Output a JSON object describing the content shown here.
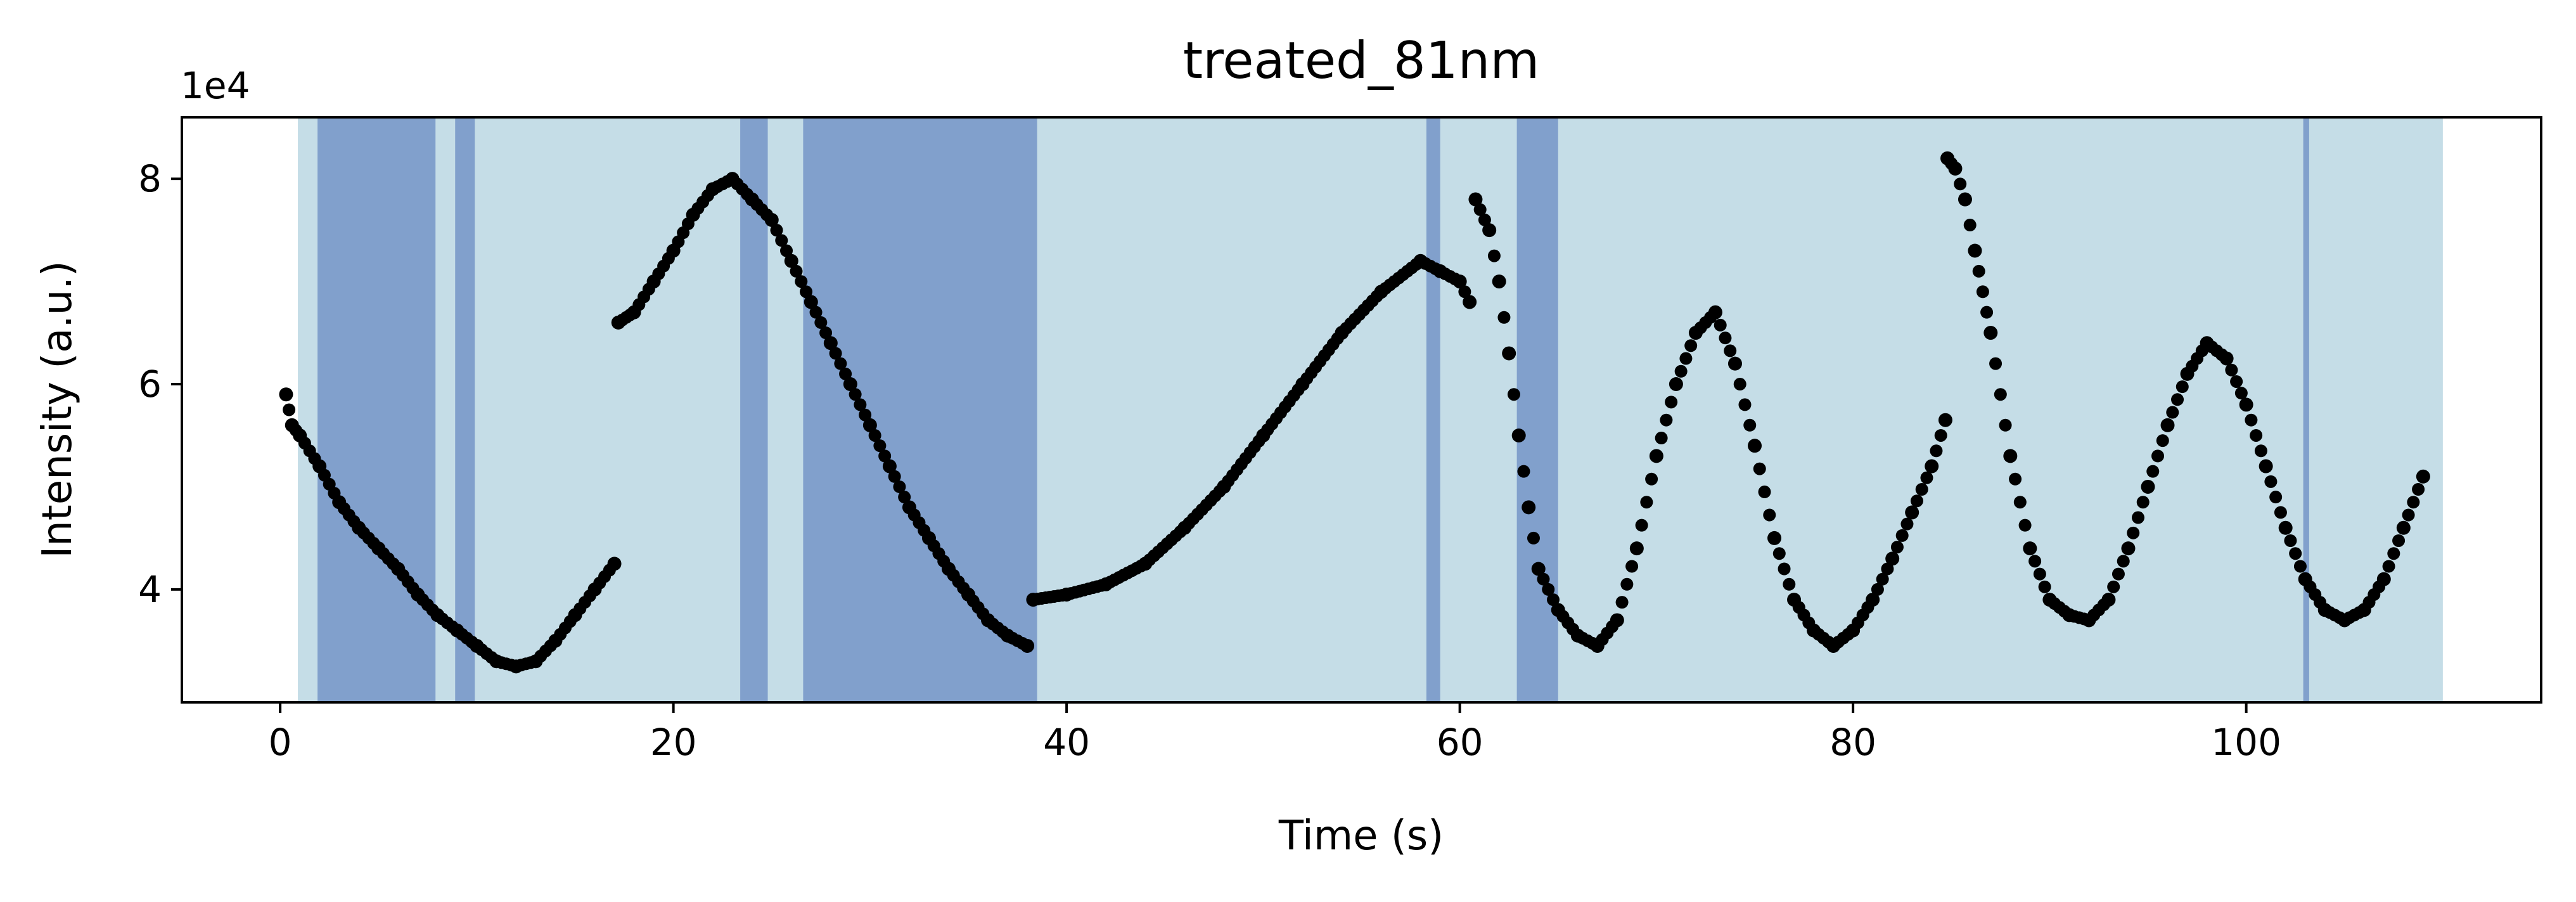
{
  "chart_data": {
    "type": "scatter",
    "title": "treated_81nm",
    "xlabel": "Time (s)",
    "ylabel": "Intensity (a.u.)",
    "y_offset_label": "1e4",
    "xlim": [
      -5,
      115
    ],
    "ylim": [
      2.9,
      8.6
    ],
    "xticks": [
      0,
      20,
      40,
      60,
      80,
      100
    ],
    "yticks": [
      4,
      6,
      8
    ],
    "grid": false,
    "marker_color": "#000000",
    "band_colors": {
      "light": "#c5dde7",
      "dark": "#81a0cc"
    },
    "light_bands": [
      [
        0.9,
        110.0
      ]
    ],
    "dark_bands": [
      [
        1.9,
        7.9
      ],
      [
        8.9,
        9.9
      ],
      [
        23.4,
        24.8
      ],
      [
        26.6,
        38.5
      ],
      [
        58.3,
        59.0
      ],
      [
        62.9,
        65.0
      ],
      [
        102.9,
        103.2
      ]
    ],
    "series": [
      {
        "x": [
          0.3,
          0.6,
          1.0,
          2.0,
          3.0,
          4.0,
          5.0,
          6.0,
          7.0,
          8.0,
          9.0,
          10.0,
          11.0,
          12.0,
          13.0,
          14.0,
          15.0,
          16.0,
          17.0
        ],
        "y": [
          5.9,
          5.6,
          5.5,
          5.2,
          4.85,
          4.6,
          4.4,
          4.2,
          3.95,
          3.75,
          3.6,
          3.45,
          3.3,
          3.25,
          3.3,
          3.5,
          3.75,
          4.0,
          4.25
        ]
      },
      {
        "x": [
          17.2,
          18.0,
          19.0,
          20.0,
          21.0,
          22.0,
          23.0,
          24.0,
          25.0,
          26.0,
          27.0,
          28.0,
          29.0,
          30.0,
          31.0,
          32.0,
          33.0,
          34.0,
          35.0,
          36.0,
          37.0,
          38.0
        ],
        "y": [
          6.6,
          6.7,
          7.0,
          7.3,
          7.65,
          7.9,
          8.0,
          7.8,
          7.6,
          7.2,
          6.8,
          6.4,
          6.0,
          5.6,
          5.2,
          4.8,
          4.5,
          4.2,
          3.95,
          3.7,
          3.55,
          3.45
        ]
      },
      {
        "x": [
          38.3,
          40.0,
          42.0,
          44.0,
          46.0,
          48.0,
          50.0,
          52.0,
          54.0,
          56.0,
          58.0,
          59.0,
          60.0,
          60.5
        ],
        "y": [
          3.9,
          3.95,
          4.05,
          4.25,
          4.6,
          5.0,
          5.5,
          6.0,
          6.5,
          6.9,
          7.2,
          7.1,
          7.0,
          6.8
        ]
      },
      {
        "x": [
          60.8,
          61.5,
          62.0,
          62.5,
          63.0,
          63.5,
          64.0,
          65.0,
          66.0,
          67.0,
          68.0,
          69.0,
          70.0,
          71.0,
          72.0,
          73.0,
          74.0,
          75.0,
          76.0,
          77.0,
          78.0,
          79.0,
          80.0,
          81.0,
          82.0,
          83.0,
          84.0,
          84.7
        ],
        "y": [
          7.8,
          7.5,
          7.0,
          6.3,
          5.5,
          4.8,
          4.2,
          3.8,
          3.55,
          3.45,
          3.7,
          4.4,
          5.3,
          6.0,
          6.5,
          6.7,
          6.2,
          5.4,
          4.5,
          3.9,
          3.6,
          3.45,
          3.6,
          3.9,
          4.3,
          4.75,
          5.2,
          5.65
        ]
      },
      {
        "x": [
          84.8,
          85.2,
          85.7,
          86.2,
          87.0,
          88.0,
          89.0,
          90.0,
          91.0,
          92.0,
          93.0,
          94.0,
          95.0,
          96.0,
          97.0,
          98.0,
          99.0,
          100.0,
          101.0,
          102.0,
          103.0,
          104.0,
          105.0,
          106.0,
          107.0,
          108.0,
          109.0
        ],
        "y": [
          8.2,
          8.1,
          7.8,
          7.3,
          6.5,
          5.3,
          4.4,
          3.9,
          3.75,
          3.7,
          3.9,
          4.4,
          5.0,
          5.6,
          6.1,
          6.4,
          6.25,
          5.8,
          5.2,
          4.6,
          4.1,
          3.8,
          3.7,
          3.8,
          4.1,
          4.6,
          5.1
        ]
      }
    ]
  }
}
